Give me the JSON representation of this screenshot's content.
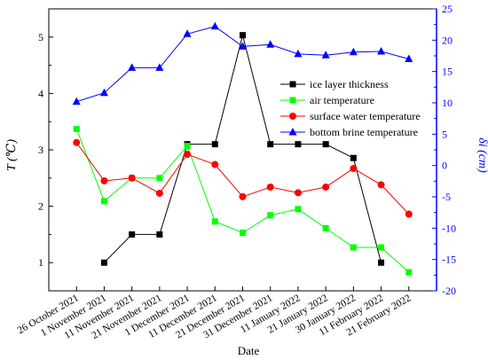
{
  "chart_data": {
    "type": "line",
    "xlabel": "Date",
    "ylabel_left": "T (℃)",
    "ylabel_right": "δi (cm)",
    "left_ylim": [
      0.5,
      5.5
    ],
    "right_ylim": [
      -20,
      25
    ],
    "left_ticks": [
      1,
      2,
      3,
      4,
      5
    ],
    "right_ticks": [
      -20,
      -15,
      -10,
      -5,
      0,
      5,
      10,
      15,
      20,
      25
    ],
    "categories": [
      "26 October 2021",
      "1 November 2021",
      "11 November 2021",
      "21 November 2021",
      "1 December 2021",
      "11 December 2021",
      "21 December 2021",
      "31 December 2021",
      "11 January 2022",
      "21 January 2022",
      "30 January 2022",
      "11 February 2022",
      "21 February 2022"
    ],
    "legend_position": "right",
    "series": [
      {
        "name": "ice layer thickness",
        "axis": "right",
        "color": "#000000",
        "marker": "square",
        "values": [
          null,
          -15.5,
          -11,
          -11,
          3.4,
          3.4,
          20.8,
          3.4,
          3.4,
          3.4,
          1.2,
          -15.5,
          null
        ]
      },
      {
        "name": "air temperature",
        "axis": "left",
        "color": "#00ff00",
        "marker": "square",
        "values": [
          3.37,
          2.09,
          2.5,
          2.5,
          3.07,
          1.73,
          1.53,
          1.84,
          1.95,
          1.61,
          1.27,
          1.27,
          0.83
        ]
      },
      {
        "name": "surface water temperature",
        "axis": "left",
        "color": "#ff0000",
        "marker": "circle",
        "values": [
          3.13,
          2.45,
          2.5,
          2.23,
          2.92,
          2.74,
          2.17,
          2.34,
          2.24,
          2.34,
          2.67,
          2.38,
          1.86
        ]
      },
      {
        "name": "bottom brine temperature",
        "axis": "right",
        "color": "#0000ff",
        "marker": "triangle",
        "values": [
          10.2,
          11.6,
          15.6,
          15.6,
          21.0,
          22.2,
          19.0,
          19.3,
          17.8,
          17.6,
          18.1,
          18.2,
          17.0
        ]
      }
    ]
  }
}
